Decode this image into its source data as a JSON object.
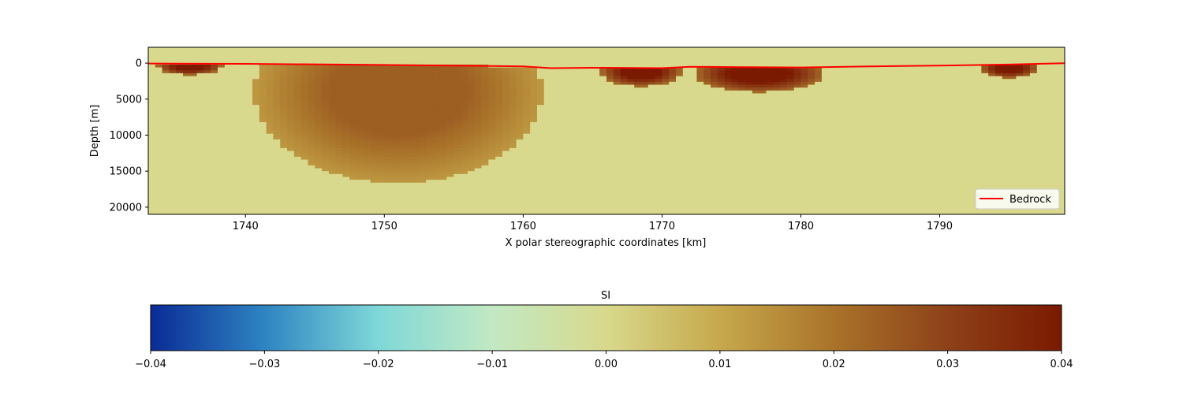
{
  "chart_data": [
    {
      "type": "heatmap",
      "title": "",
      "xlabel": "X polar stereographic coordinates [km]",
      "ylabel": "Depth [m]",
      "xlim": [
        1733,
        1799
      ],
      "ylim": [
        21000,
        -2200
      ],
      "y_inverted": true,
      "xticks": [
        1740,
        1750,
        1760,
        1770,
        1780,
        1790
      ],
      "xtick_labels": [
        "1740",
        "1750",
        "1760",
        "1770",
        "1780",
        "1790"
      ],
      "yticks": [
        0,
        5000,
        10000,
        15000,
        20000
      ],
      "ytick_labels": [
        "0",
        "5000",
        "10000",
        "15000",
        "20000"
      ],
      "colormap": "blue-cyan-green-tan-brown",
      "value_range": [
        -0.04,
        0.04
      ],
      "background_value": 0.0,
      "anomalies": [
        {
          "x_center": 1736,
          "depth_center": 500,
          "x_halfwidth": 2,
          "depth_halfwidth": 1000,
          "value": 0.04
        },
        {
          "x_center": 1751,
          "depth_center": 4000,
          "x_halfwidth": 9,
          "depth_halfwidth": 11000,
          "value": 0.024
        },
        {
          "x_center": 1758.5,
          "depth_center": 500,
          "x_halfwidth": 1.5,
          "depth_halfwidth": 600,
          "value": -0.008
        },
        {
          "x_center": 1768.5,
          "depth_center": 1200,
          "x_halfwidth": 2.5,
          "depth_halfwidth": 1800,
          "value": 0.04
        },
        {
          "x_center": 1777,
          "depth_center": 1500,
          "x_halfwidth": 4,
          "depth_halfwidth": 2200,
          "value": 0.04
        },
        {
          "x_center": 1795,
          "depth_center": 700,
          "x_halfwidth": 1.8,
          "depth_halfwidth": 1200,
          "value": 0.04
        }
      ],
      "legend": {
        "entries": [
          "Bedrock"
        ],
        "placement": "lower-right"
      },
      "grid": false,
      "series": [
        {
          "name": "Bedrock",
          "type": "line",
          "color": "#ff0000",
          "x": [
            1733,
            1740,
            1750,
            1760,
            1762,
            1765,
            1770,
            1772,
            1775,
            1780,
            1785,
            1790,
            1795,
            1798,
            1799
          ],
          "y": [
            50,
            100,
            250,
            450,
            700,
            650,
            700,
            500,
            550,
            600,
            450,
            350,
            200,
            50,
            20
          ]
        }
      ]
    },
    {
      "type": "colorbar",
      "title": "SI",
      "range": [
        -0.04,
        0.04
      ],
      "ticks": [
        -0.04,
        -0.03,
        -0.02,
        -0.01,
        0.0,
        0.01,
        0.02,
        0.03,
        0.04
      ],
      "tick_labels": [
        "−0.04",
        "−0.03",
        "−0.02",
        "−0.01",
        "0.00",
        "0.01",
        "0.02",
        "0.03",
        "0.04"
      ],
      "colors": [
        "#0a2b96",
        "#2e84c2",
        "#7fd8d8",
        "#c2e9c4",
        "#d8d98c",
        "#c7a84c",
        "#a9732a",
        "#8e4119",
        "#7a1a00"
      ]
    }
  ]
}
